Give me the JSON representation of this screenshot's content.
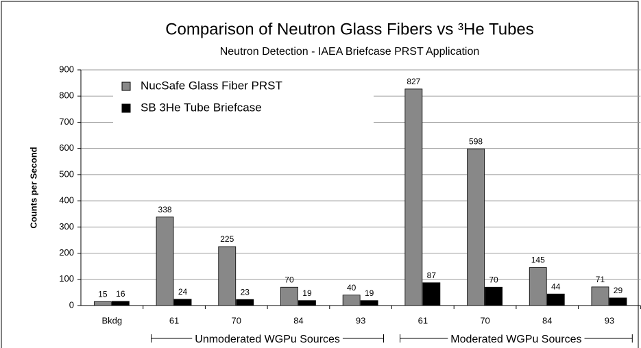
{
  "chart_data": {
    "type": "bar",
    "title": "Comparison of Neutron Glass Fibers vs ³He Tubes",
    "subtitle": "Neutron Detection  -  IAEA Briefcase PRST Application",
    "y_label": "Counts per Second",
    "categories": [
      "Bkdg",
      "61",
      "70",
      "84",
      "93",
      "61",
      "70",
      "84",
      "93"
    ],
    "series": [
      {
        "name": "NucSafe Glass Fiber PRST",
        "color": "#888888",
        "values": [
          15,
          338,
          225,
          70,
          40,
          827,
          598,
          145,
          71
        ]
      },
      {
        "name": "SB 3He Tube Briefcase",
        "color": "#000000",
        "values": [
          16,
          24,
          23,
          19,
          19,
          87,
          70,
          44,
          29
        ]
      }
    ],
    "groups": [
      "Unmoderated WGPu Sources",
      "Moderated WGPu Sources"
    ],
    "ylim": [
      0,
      900
    ],
    "yticks": [
      0,
      100,
      200,
      300,
      400,
      500,
      600,
      700,
      800,
      900
    ],
    "grid": true
  }
}
